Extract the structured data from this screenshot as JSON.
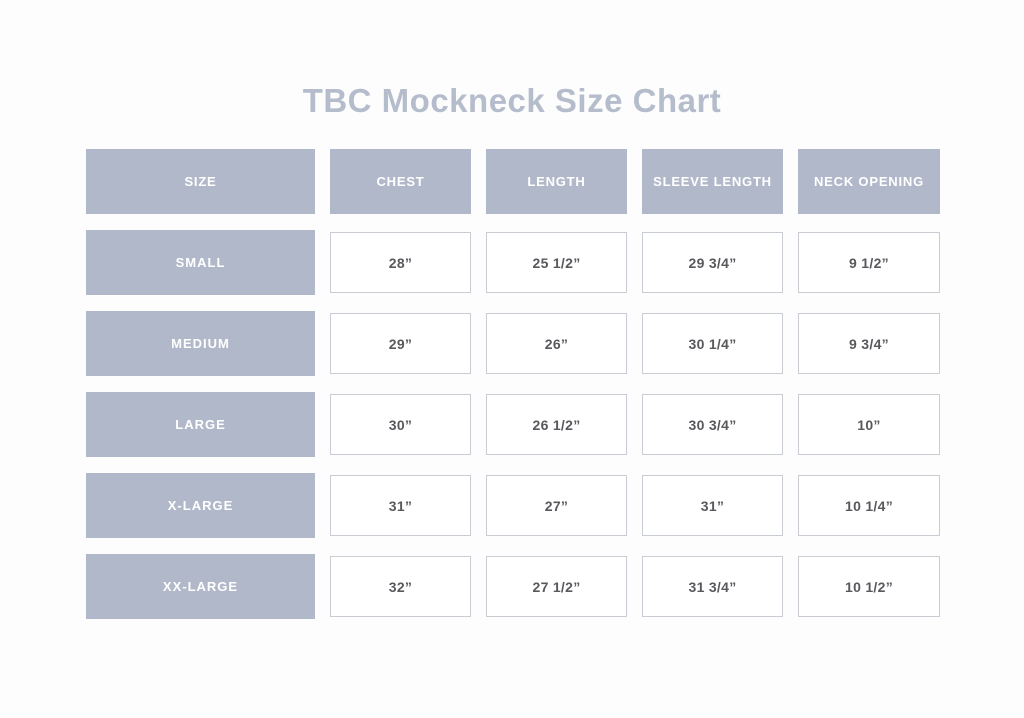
{
  "colors": {
    "accent_blue_gray": "#b1b8c9",
    "title_text": "#b5bdcc",
    "header_text": "#ffffff",
    "value_text": "#58595d",
    "cell_border": "#c9ccd2",
    "page_background": "#fdfdfd"
  },
  "chart_data": {
    "type": "table",
    "title": "TBC Mockneck Size Chart",
    "columns": [
      "SIZE",
      "CHEST",
      "LENGTH",
      "SLEEVE LENGTH",
      "NECK OPENING"
    ],
    "rows": [
      {
        "size": "SMALL",
        "values": [
          "28”",
          "25 1/2”",
          "29 3/4”",
          "9 1/2”"
        ]
      },
      {
        "size": "MEDIUM",
        "values": [
          "29”",
          "26”",
          "30 1/4”",
          "9 3/4”"
        ]
      },
      {
        "size": "LARGE",
        "values": [
          "30”",
          "26 1/2”",
          "30 3/4”",
          "10”"
        ]
      },
      {
        "size": "X-LARGE",
        "values": [
          "31”",
          "27”",
          "31”",
          "10 1/4”"
        ]
      },
      {
        "size": "XX-LARGE",
        "values": [
          "32”",
          "27 1/2”",
          "31 3/4”",
          "10 1/2”"
        ]
      }
    ],
    "layout": {
      "header_fill": "#b1b8c9",
      "value_cell_fill": "#ffffff",
      "grid": "5 columns x 6 rows, separated blocks with white gutters"
    }
  }
}
